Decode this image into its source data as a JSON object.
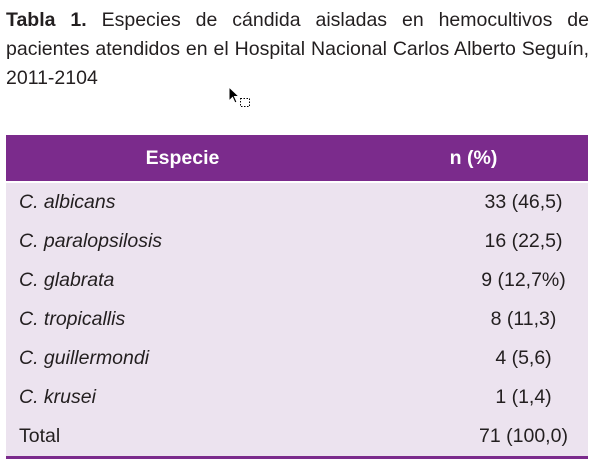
{
  "caption": {
    "label": "Tabla 1.",
    "text": "Especies de cándida aisladas en hemocultivos de pacientes atendidos en el Hospital Nacional Carlos Alberto Seguín, 2011-2104"
  },
  "table": {
    "headers": [
      "Especie",
      "n (%)"
    ],
    "rows": [
      {
        "species": "C. albicans",
        "value": "33 (46,5)"
      },
      {
        "species": "C. paralopsilosis",
        "value": "16 (22,5)"
      },
      {
        "species": "C. glabrata",
        "value": "9 (12,7%)"
      },
      {
        "species": "C. tropicallis",
        "value": "8 (11,3)"
      },
      {
        "species": "C. guillermondi",
        "value": "4 (5,6)"
      },
      {
        "species": "C. krusei",
        "value": "1 (1,4)"
      },
      {
        "species": "Total",
        "value": "71 (100,0)"
      }
    ]
  },
  "colors": {
    "header_bg": "#7b2b8c",
    "row_bg": "#ece3ef"
  },
  "icons": {
    "cursor": "mouse-pointer-with-drag-box"
  }
}
